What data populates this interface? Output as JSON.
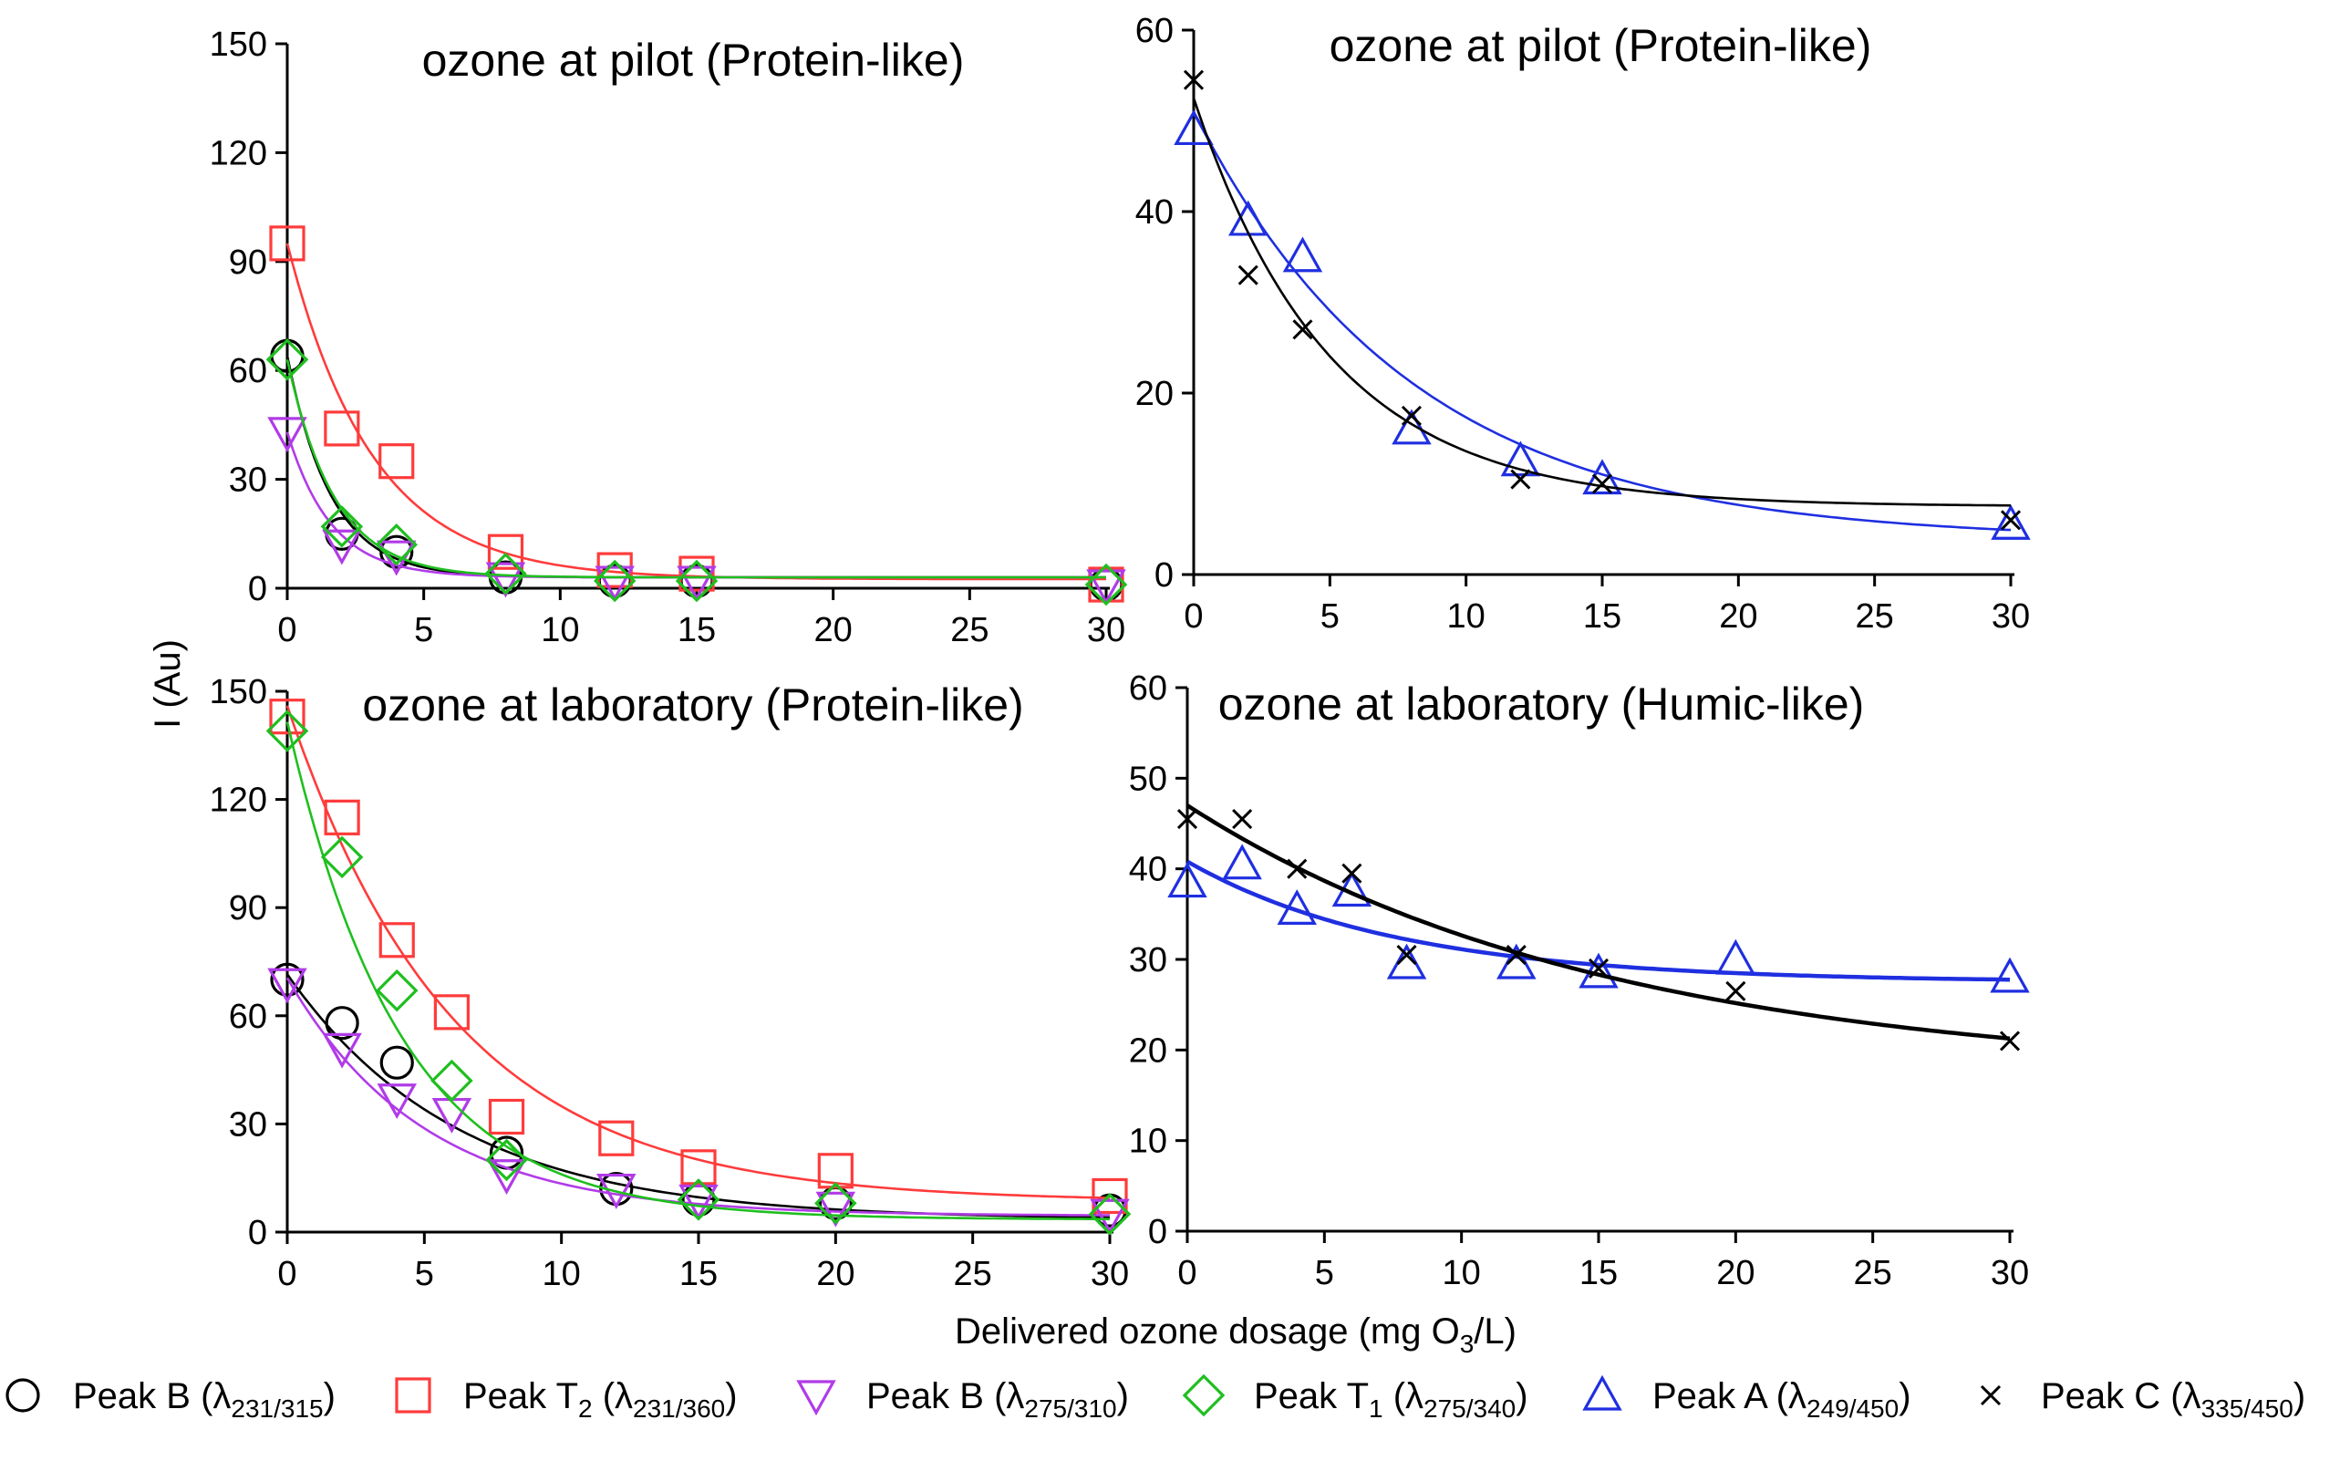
{
  "figure": {
    "ylabel": "I (Au)",
    "xlabel_main": "Delivered ozone dosage (mg O",
    "xlabel_sub": "3",
    "xlabel_tail": "/L)"
  },
  "colors": {
    "peak_b_231": "#000000",
    "peak_t2": "#ff3b3b",
    "peak_b_275": "#b13be8",
    "peak_t1": "#1fbf1f",
    "peak_a": "#1f2fe0",
    "peak_c": "#000000"
  },
  "legend": [
    {
      "key": "peak_b_231",
      "marker": "circle",
      "label": "Peak B (λ",
      "label_sub_pre": "",
      "sub": "231/315",
      "tail": ")"
    },
    {
      "key": "peak_t2",
      "marker": "square",
      "label": "Peak T",
      "label_sub_pre": "2",
      "mid": " (λ",
      "sub": "231/360",
      "tail": ")"
    },
    {
      "key": "peak_b_275",
      "marker": "triangle-down",
      "label": "Peak B (λ",
      "label_sub_pre": "",
      "sub": "275/310",
      "tail": ")"
    },
    {
      "key": "peak_t1",
      "marker": "diamond",
      "label": "Peak T",
      "label_sub_pre": "1",
      "mid": " (λ",
      "sub": "275/340",
      "tail": ")"
    },
    {
      "key": "peak_a",
      "marker": "triangle-up",
      "label": "Peak A (λ",
      "label_sub_pre": "",
      "sub": "249/450",
      "tail": ")"
    },
    {
      "key": "peak_c",
      "marker": "cross",
      "label": "Peak C (λ",
      "label_sub_pre": "",
      "sub": "335/450",
      "tail": ")"
    }
  ],
  "chart_data": [
    {
      "type": "scatter",
      "title": "ozone at pilot (Protein-like)",
      "xlim": [
        0,
        30
      ],
      "ylim": [
        0,
        150
      ],
      "xticks": [
        "0",
        "5",
        "10",
        "15",
        "20",
        "25",
        "30"
      ],
      "yticks": [
        "0",
        "30",
        "60",
        "90",
        "120",
        "150"
      ],
      "series": [
        {
          "name": "Peak B (λ231/315)",
          "key": "peak_b_231",
          "marker": "circle",
          "x": [
            0,
            2,
            4,
            8,
            12,
            15,
            30
          ],
          "y": [
            64,
            15,
            10,
            3,
            2,
            2,
            1
          ],
          "fit": {
            "plateau": 3,
            "span": 61,
            "k": 0.62
          }
        },
        {
          "name": "Peak T2 (λ231/360)",
          "key": "peak_t2",
          "marker": "square",
          "x": [
            0,
            2,
            4,
            8,
            12,
            15,
            30
          ],
          "y": [
            95,
            44,
            35,
            10,
            5,
            4,
            1
          ],
          "fit": {
            "plateau": 2.5,
            "span": 92.5,
            "k": 0.32
          }
        },
        {
          "name": "Peak B (λ275/310)",
          "key": "peak_b_275",
          "marker": "triangle-down",
          "x": [
            0,
            2,
            4,
            8,
            12,
            15,
            30
          ],
          "y": [
            43,
            12,
            9,
            3,
            2,
            2,
            1
          ],
          "fit": {
            "plateau": 3,
            "span": 40,
            "k": 0.62
          }
        },
        {
          "name": "Peak T1 (λ275/340)",
          "key": "peak_t1",
          "marker": "diamond",
          "x": [
            0,
            2,
            4,
            8,
            12,
            15,
            30
          ],
          "y": [
            63,
            17,
            12,
            4,
            2,
            2,
            1
          ],
          "fit": {
            "plateau": 3,
            "span": 60,
            "k": 0.58
          }
        }
      ]
    },
    {
      "type": "scatter",
      "title": "ozone at pilot (Protein-like)",
      "xlim": [
        0,
        30
      ],
      "ylim": [
        0,
        60
      ],
      "xticks": [
        "0",
        "5",
        "10",
        "15",
        "20",
        "25",
        "30"
      ],
      "yticks": [
        "0",
        "20",
        "40",
        "60"
      ],
      "series": [
        {
          "name": "Peak A (λ249/450)",
          "key": "peak_a",
          "marker": "triangle-up",
          "x": [
            0,
            2,
            4,
            8,
            12,
            15,
            30
          ],
          "y": [
            49,
            39,
            35,
            16,
            12.5,
            10.5,
            5.5
          ],
          "fit": {
            "plateau": 3.8,
            "span": 47.2,
            "k": 0.125
          }
        },
        {
          "name": "Peak C (λ335/450)",
          "key": "peak_c",
          "marker": "cross",
          "x": [
            0,
            2,
            4,
            8,
            12,
            15,
            30
          ],
          "y": [
            54.5,
            33,
            27,
            17.5,
            10.5,
            10,
            6
          ],
          "fit": {
            "plateau": 7.5,
            "span": 45,
            "k": 0.2
          }
        }
      ]
    },
    {
      "type": "scatter",
      "title": "ozone at laboratory (Protein-like)",
      "xlim": [
        0,
        30
      ],
      "ylim": [
        0,
        150
      ],
      "xticks": [
        "0",
        "5",
        "10",
        "15",
        "20",
        "25",
        "30"
      ],
      "yticks": [
        "0",
        "30",
        "60",
        "90",
        "120",
        "150"
      ],
      "series": [
        {
          "name": "Peak B (λ231/315)",
          "key": "peak_b_231",
          "marker": "circle",
          "x": [
            0,
            2,
            4,
            8,
            12,
            15,
            20,
            30
          ],
          "y": [
            70,
            58,
            47,
            22,
            12,
            9,
            8,
            6
          ],
          "fit": {
            "plateau": 3.5,
            "span": 68,
            "k": 0.16
          }
        },
        {
          "name": "Peak T2 (λ231/360)",
          "key": "peak_t2",
          "marker": "square",
          "x": [
            0,
            2,
            4,
            6,
            8,
            12,
            15,
            20,
            30
          ],
          "y": [
            143,
            115,
            81,
            61,
            32,
            26,
            18,
            17,
            10
          ],
          "fit": {
            "plateau": 8.5,
            "span": 137.5,
            "k": 0.165
          }
        },
        {
          "name": "Peak B (λ275/310)",
          "key": "peak_b_275",
          "marker": "triangle-down",
          "x": [
            0,
            2,
            4,
            6,
            8,
            12,
            15,
            20,
            30
          ],
          "y": [
            69,
            51,
            37,
            33,
            16,
            12,
            9,
            7,
            5
          ],
          "fit": {
            "plateau": 4.5,
            "span": 66,
            "k": 0.2
          }
        },
        {
          "name": "Peak T1 (λ275/340)",
          "key": "peak_t1",
          "marker": "diamond",
          "x": [
            0,
            2,
            4,
            6,
            8,
            15,
            20,
            30
          ],
          "y": [
            139,
            104,
            67,
            42,
            20,
            9,
            8,
            5
          ],
          "fit": {
            "plateau": 3.5,
            "span": 138,
            "k": 0.24
          }
        }
      ]
    },
    {
      "type": "scatter",
      "title": "ozone at laboratory (Humic-like)",
      "xlim": [
        0,
        30
      ],
      "ylim": [
        0,
        60
      ],
      "xticks": [
        "0",
        "5",
        "10",
        "15",
        "20",
        "25",
        "30"
      ],
      "yticks": [
        "0",
        "10",
        "20",
        "30",
        "40",
        "50",
        "60"
      ],
      "series": [
        {
          "name": "Peak A (λ249/450)",
          "key": "peak_a",
          "marker": "triangle-up",
          "x": [
            0,
            2,
            4,
            6,
            8,
            12,
            15,
            20,
            30
          ],
          "y": [
            38.5,
            40.5,
            35.5,
            37.5,
            29.5,
            29.5,
            28.5,
            30,
            28
          ],
          "fit": {
            "plateau": 27.5,
            "span": 13.3,
            "k": 0.13
          }
        },
        {
          "name": "Peak C (λ335/450)",
          "key": "peak_c",
          "marker": "cross",
          "x": [
            0,
            2,
            4,
            6,
            8,
            12,
            15,
            20,
            30
          ],
          "y": [
            45.5,
            45.5,
            40,
            39.5,
            30.5,
            30.5,
            29,
            26.5,
            21
          ],
          "fit": {
            "plateau": 17,
            "span": 30,
            "k": 0.065
          }
        }
      ]
    }
  ]
}
